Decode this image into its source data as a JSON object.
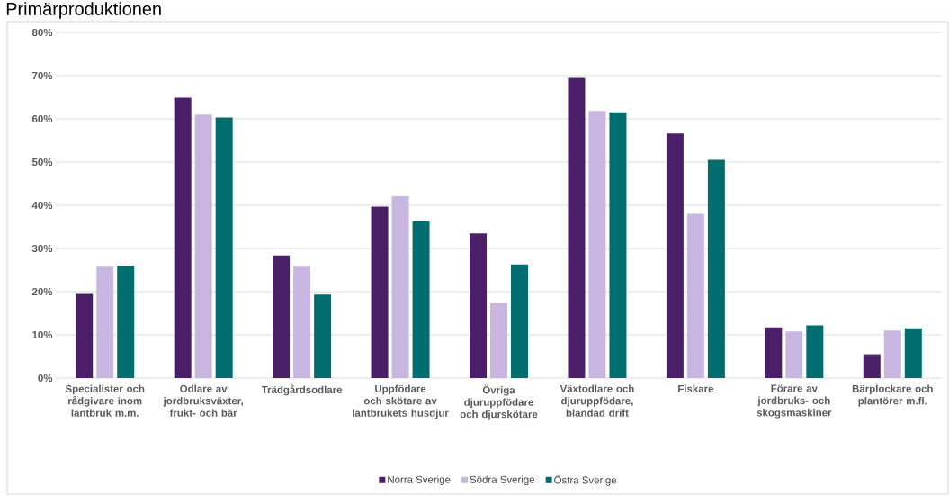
{
  "chart_data": {
    "type": "bar",
    "title": "Primärproduktionen",
    "categories": [
      "Specialister och rådgivare inom lantbruk m.m.",
      "Odlare av jordbruksväxter, frukt- och bär",
      "Trädgårdsodlare",
      "Uppfödare och skötare av lantbrukets husdjur",
      "Övriga djuruppfödare och djurskötare",
      "Växtodlare och djuruppfödare, blandad drift",
      "Fiskare",
      "Förare av jordbruks- och skogsmaskiner",
      "Bärplockare och plantörer m.fl."
    ],
    "series": [
      {
        "name": "Norra Sverige",
        "color": "#4b1f67",
        "values": [
          19.5,
          64.9,
          28.4,
          39.7,
          33.5,
          69.5,
          56.6,
          11.7,
          5.5
        ]
      },
      {
        "name": "Södra Sverige",
        "color": "#c8b6e0",
        "values": [
          25.8,
          61.0,
          25.8,
          42.1,
          17.3,
          61.8,
          38.0,
          10.8,
          11.0
        ]
      },
      {
        "name": "Östra Sverige",
        "color": "#006e6e",
        "values": [
          26.0,
          60.3,
          19.3,
          36.3,
          26.3,
          61.5,
          50.5,
          12.2,
          11.5
        ]
      }
    ],
    "ylim": [
      0,
      80
    ],
    "yticks": [
      {
        "value": 0,
        "label": "0%"
      },
      {
        "value": 10,
        "label": "10%"
      },
      {
        "value": 20,
        "label": "20%"
      },
      {
        "value": 30,
        "label": "30%"
      },
      {
        "value": 40,
        "label": "40%"
      },
      {
        "value": 50,
        "label": "50%"
      },
      {
        "value": 60,
        "label": "60%"
      },
      {
        "value": 70,
        "label": "70%"
      },
      {
        "value": 80,
        "label": "80%"
      }
    ],
    "grid": "y",
    "legend": "bottom"
  }
}
